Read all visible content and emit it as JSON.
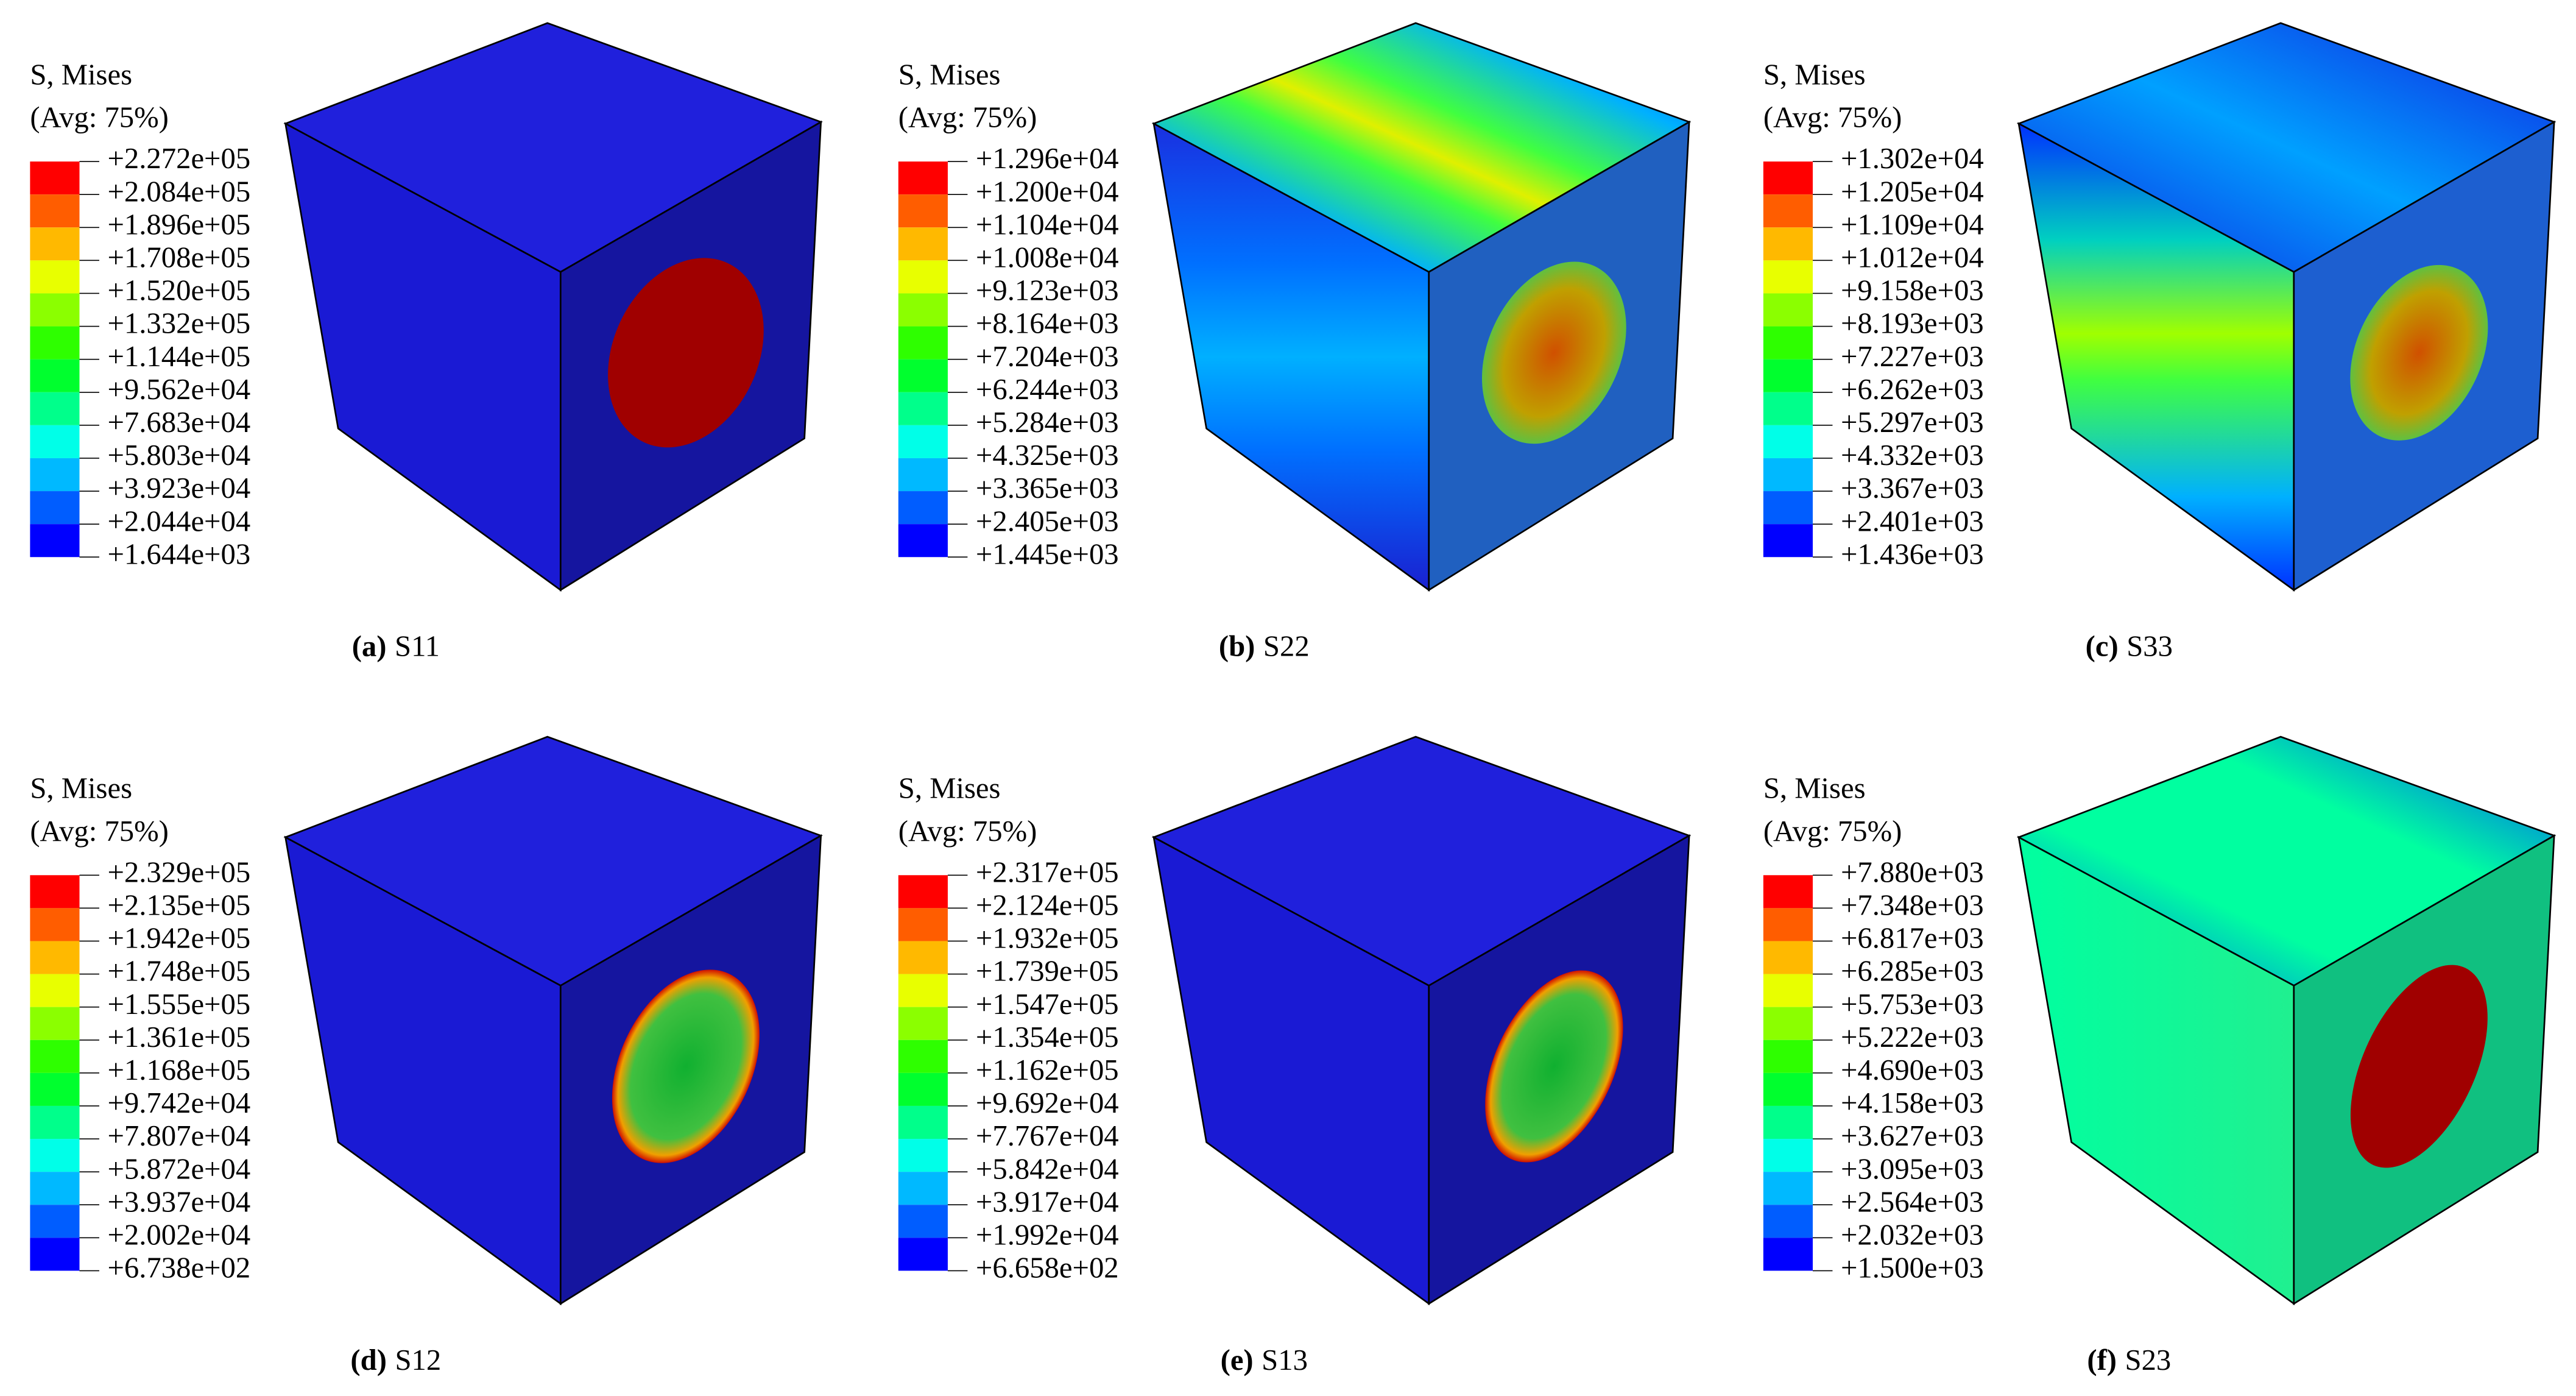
{
  "panels": [
    {
      "title": "S, Mises",
      "subtitle": "(Avg: 75%)",
      "legend": [
        "+2.272e+05",
        "+2.084e+05",
        "+1.896e+05",
        "+1.708e+05",
        "+1.520e+05",
        "+1.332e+05",
        "+1.144e+05",
        "+9.562e+04",
        "+7.683e+04",
        "+5.803e+04",
        "+3.923e+04",
        "+2.044e+04",
        "+1.644e+03"
      ],
      "caption_label": "(a)",
      "caption_text": "S11"
    },
    {
      "title": "S, Mises",
      "subtitle": "(Avg: 75%)",
      "legend": [
        "+1.296e+04",
        "+1.200e+04",
        "+1.104e+04",
        "+1.008e+04",
        "+9.123e+03",
        "+8.164e+03",
        "+7.204e+03",
        "+6.244e+03",
        "+5.284e+03",
        "+4.325e+03",
        "+3.365e+03",
        "+2.405e+03",
        "+1.445e+03"
      ],
      "caption_label": "(b)",
      "caption_text": "S22"
    },
    {
      "title": "S, Mises",
      "subtitle": "(Avg: 75%)",
      "legend": [
        "+1.302e+04",
        "+1.205e+04",
        "+1.109e+04",
        "+1.012e+04",
        "+9.158e+03",
        "+8.193e+03",
        "+7.227e+03",
        "+6.262e+03",
        "+5.297e+03",
        "+4.332e+03",
        "+3.367e+03",
        "+2.401e+03",
        "+1.436e+03"
      ],
      "caption_label": "(c)",
      "caption_text": "S33"
    },
    {
      "title": "S, Mises",
      "subtitle": "(Avg: 75%)",
      "legend": [
        "+2.329e+05",
        "+2.135e+05",
        "+1.942e+05",
        "+1.748e+05",
        "+1.555e+05",
        "+1.361e+05",
        "+1.168e+05",
        "+9.742e+04",
        "+7.807e+04",
        "+5.872e+04",
        "+3.937e+04",
        "+2.002e+04",
        "+6.738e+02"
      ],
      "caption_label": "(d)",
      "caption_text": "S12"
    },
    {
      "title": "S, Mises",
      "subtitle": "(Avg: 75%)",
      "legend": [
        "+2.317e+05",
        "+2.124e+05",
        "+1.932e+05",
        "+1.739e+05",
        "+1.547e+05",
        "+1.354e+05",
        "+1.162e+05",
        "+9.692e+04",
        "+7.767e+04",
        "+5.842e+04",
        "+3.917e+04",
        "+1.992e+04",
        "+6.658e+02"
      ],
      "caption_label": "(e)",
      "caption_text": "S13"
    },
    {
      "title": "S, Mises",
      "subtitle": "(Avg: 75%)",
      "legend": [
        "+7.880e+03",
        "+7.348e+03",
        "+6.817e+03",
        "+6.285e+03",
        "+5.753e+03",
        "+5.222e+03",
        "+4.690e+03",
        "+4.158e+03",
        "+3.627e+03",
        "+3.095e+03",
        "+2.564e+03",
        "+2.032e+03",
        "+1.500e+03"
      ],
      "caption_label": "(f)",
      "caption_text": "S23"
    }
  ]
}
